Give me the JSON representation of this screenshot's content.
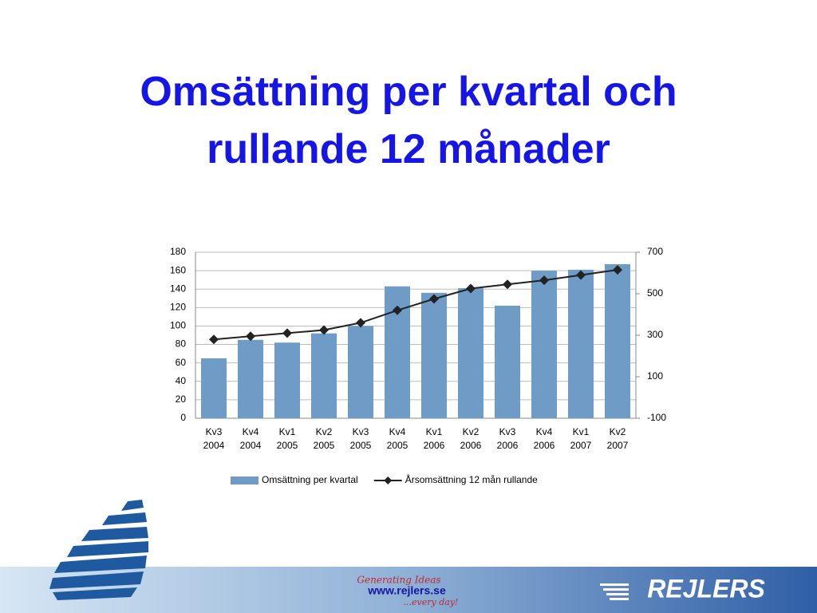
{
  "chart_data": {
    "type": "bar",
    "title": "Omsättning per kvartal och rullande 12 månader",
    "categories": [
      [
        "Kv3",
        "2004"
      ],
      [
        "Kv4",
        "2004"
      ],
      [
        "Kv1",
        "2005"
      ],
      [
        "Kv2",
        "2005"
      ],
      [
        "Kv3",
        "2005"
      ],
      [
        "Kv4",
        "2005"
      ],
      [
        "Kv1",
        "2006"
      ],
      [
        "Kv2",
        "2006"
      ],
      [
        "Kv3",
        "2006"
      ],
      [
        "Kv4",
        "2006"
      ],
      [
        "Kv1",
        "2007"
      ],
      [
        "Kv2",
        "2007"
      ]
    ],
    "series": [
      {
        "name": "Omsättning per kvartal",
        "type": "bar",
        "color": "#6f9bc7",
        "values": [
          65,
          85,
          82,
          92,
          100,
          143,
          136,
          141,
          122,
          160,
          161,
          167
        ]
      },
      {
        "name": "Årsomsättning 12 mån rullande",
        "type": "line",
        "axis": "y2",
        "color": "#222222",
        "values": [
          280,
          295,
          310,
          325,
          360,
          420,
          475,
          525,
          545,
          565,
          590,
          615
        ]
      }
    ],
    "ylim": [
      0,
      180
    ],
    "yticks": [
      0,
      20,
      40,
      60,
      80,
      100,
      120,
      140,
      160,
      180
    ],
    "y2lim": [
      -100,
      700
    ],
    "y2ticks": [
      -100,
      100,
      300,
      500,
      700
    ],
    "grid": true,
    "legend": "bottom"
  },
  "footer": {
    "tagline": "Generating Ideas",
    "url": "www.rejlers.se",
    "slogan": "...every day!",
    "brand": "REJLERS"
  }
}
